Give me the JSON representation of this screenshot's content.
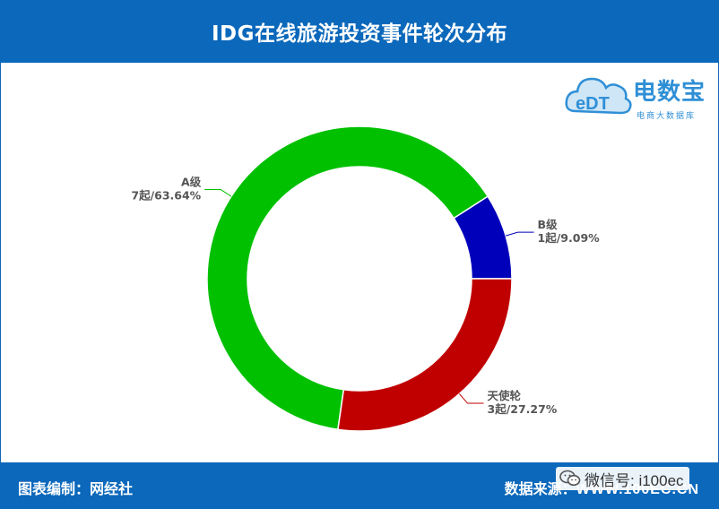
{
  "header": {
    "title": "IDG在线旅游投资事件轮次分布"
  },
  "logo": {
    "name": "电数宝",
    "sub": "电商大数据库",
    "mark": "eDT"
  },
  "footer": {
    "left": "图表编制：网经社",
    "right_label": "数据来源：",
    "right_value": "WWW.100EC.CN"
  },
  "watermark": {
    "text": "微信号: i100ec",
    "icon": "wechat-icon"
  },
  "colors": {
    "header_bg": "#0b68bb",
    "A": "#00c000",
    "B": "#0000bb",
    "angel": "#c00000"
  },
  "chart_data": {
    "type": "pie",
    "donut": true,
    "title": "IDG在线旅游投资事件轮次分布",
    "slices": [
      {
        "name": "B级",
        "count": 1,
        "value_label": "1起/9.09%",
        "percent": 9.09,
        "color": "#0000bb"
      },
      {
        "name": "天使轮",
        "count": 3,
        "value_label": "3起/27.27%",
        "percent": 27.27,
        "color": "#c00000"
      },
      {
        "name": "A级",
        "count": 7,
        "value_label": "7起/63.64%",
        "percent": 63.64,
        "color": "#00c000"
      }
    ]
  }
}
